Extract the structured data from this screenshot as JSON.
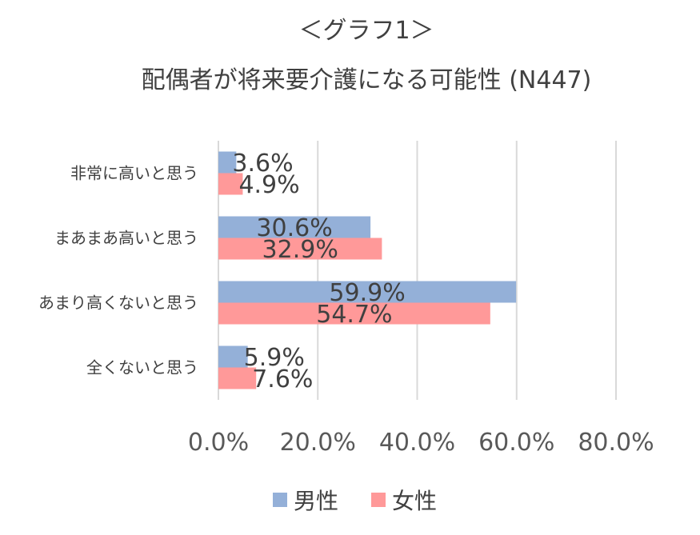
{
  "chart_data": {
    "type": "bar",
    "orientation": "horizontal",
    "title": "＜グラフ1＞",
    "subtitle": "配偶者が将来要介護になる可能性 (N447)",
    "categories": [
      "非常に高いと思う",
      "まあまあ高いと思う",
      "あまり高くないと思う",
      "全くないと思う"
    ],
    "series": [
      {
        "name": "男性",
        "values": [
          3.6,
          30.6,
          59.9,
          5.9
        ],
        "labels": [
          "3.6%",
          "30.6%",
          "59.9%",
          "5.9%"
        ],
        "color": "#94B0D8"
      },
      {
        "name": "女性",
        "values": [
          4.9,
          32.9,
          54.7,
          7.6
        ],
        "labels": [
          "4.9%",
          "32.9%",
          "54.7%",
          "7.6%"
        ],
        "color": "#FF9999"
      }
    ],
    "xlim": [
      0,
      80
    ],
    "xticks": [
      0,
      20,
      40,
      60,
      80
    ],
    "xtick_labels": [
      "0.0%",
      "20.0%",
      "40.0%",
      "60.0%",
      "80.0%"
    ],
    "grid": true,
    "legend_position": "bottom"
  }
}
